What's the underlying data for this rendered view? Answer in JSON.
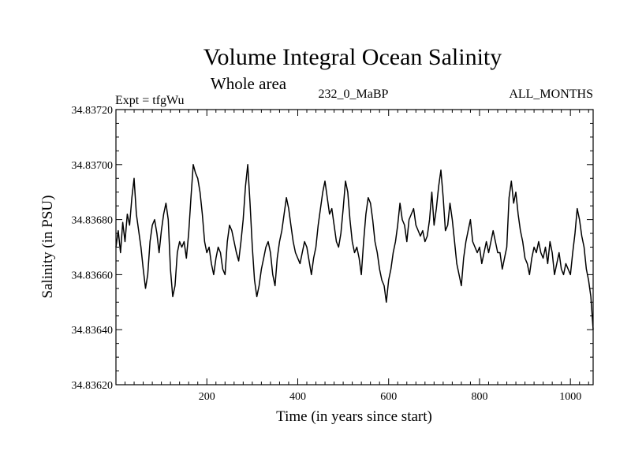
{
  "chart_data": {
    "type": "line",
    "title": "Volume Integral Ocean Salinity",
    "subtitle": "Whole area",
    "header_left": "Expt = tfgWu",
    "header_center": "232_0_MaBP",
    "header_right": "ALL_MONTHS",
    "xlabel": "Time (in years since start)",
    "ylabel": "Salinity (in PSU)",
    "xlim": [
      0,
      1050
    ],
    "ylim": [
      34.8362,
      34.8372
    ],
    "xticks": [
      {
        "value": 200,
        "label": "200"
      },
      {
        "value": 400,
        "label": "400"
      },
      {
        "value": 600,
        "label": "600"
      },
      {
        "value": 800,
        "label": "800"
      },
      {
        "value": 1000,
        "label": "1000"
      }
    ],
    "xminor_step": 20,
    "yticks": [
      {
        "value": 34.8362,
        "label": "34.83620"
      },
      {
        "value": 34.8364,
        "label": "34.83640"
      },
      {
        "value": 34.8366,
        "label": "34.83660"
      },
      {
        "value": 34.8368,
        "label": "34.83680"
      },
      {
        "value": 34.837,
        "label": "34.83700"
      },
      {
        "value": 34.8372,
        "label": "34.83720"
      }
    ],
    "yminor_step": 5e-05,
    "series": [
      {
        "name": "salinity",
        "x": [
          0,
          5,
          10,
          15,
          20,
          25,
          30,
          35,
          40,
          45,
          50,
          55,
          60,
          65,
          70,
          75,
          80,
          85,
          90,
          95,
          100,
          105,
          110,
          115,
          120,
          125,
          130,
          135,
          140,
          145,
          150,
          155,
          160,
          165,
          170,
          175,
          180,
          185,
          190,
          195,
          200,
          205,
          210,
          215,
          220,
          225,
          230,
          235,
          240,
          245,
          250,
          255,
          260,
          265,
          270,
          275,
          280,
          285,
          290,
          295,
          300,
          305,
          310,
          315,
          320,
          325,
          330,
          335,
          340,
          345,
          350,
          355,
          360,
          365,
          370,
          375,
          380,
          385,
          390,
          395,
          400,
          405,
          410,
          415,
          420,
          425,
          430,
          435,
          440,
          445,
          450,
          455,
          460,
          465,
          470,
          475,
          480,
          485,
          490,
          495,
          500,
          505,
          510,
          515,
          520,
          525,
          530,
          535,
          540,
          545,
          550,
          555,
          560,
          565,
          570,
          575,
          580,
          585,
          590,
          595,
          600,
          605,
          610,
          615,
          620,
          625,
          630,
          635,
          640,
          645,
          650,
          655,
          660,
          665,
          670,
          675,
          680,
          685,
          690,
          695,
          700,
          705,
          710,
          715,
          720,
          725,
          730,
          735,
          740,
          745,
          750,
          755,
          760,
          765,
          770,
          775,
          780,
          785,
          790,
          795,
          800,
          805,
          810,
          815,
          820,
          825,
          830,
          835,
          840,
          845,
          850,
          855,
          860,
          865,
          870,
          875,
          880,
          885,
          890,
          895,
          900,
          905,
          910,
          915,
          920,
          925,
          930,
          935,
          940,
          945,
          950,
          955,
          960,
          965,
          970,
          975,
          980,
          985,
          990,
          995,
          1000,
          1005,
          1010,
          1015,
          1020,
          1025,
          1030,
          1035,
          1040,
          1045,
          1050
        ],
        "y": [
          34.8367,
          34.83676,
          34.83668,
          34.83679,
          34.83672,
          34.83682,
          34.83678,
          34.83688,
          34.83695,
          34.83682,
          34.83676,
          34.8367,
          34.83662,
          34.83655,
          34.8366,
          34.83672,
          34.83678,
          34.8368,
          34.83675,
          34.83668,
          34.83676,
          34.83682,
          34.83686,
          34.8368,
          34.83662,
          34.83652,
          34.83656,
          34.83668,
          34.83672,
          34.8367,
          34.83672,
          34.83666,
          34.83675,
          34.83688,
          34.837,
          34.83697,
          34.83695,
          34.8369,
          34.83682,
          34.83672,
          34.83668,
          34.8367,
          34.83664,
          34.8366,
          34.83666,
          34.8367,
          34.83668,
          34.83662,
          34.8366,
          34.83672,
          34.83678,
          34.83676,
          34.83672,
          34.83668,
          34.83665,
          34.83672,
          34.8368,
          34.83692,
          34.837,
          34.83686,
          34.8367,
          34.83658,
          34.83652,
          34.83656,
          34.83662,
          34.83666,
          34.8367,
          34.83672,
          34.83668,
          34.8366,
          34.83656,
          34.83666,
          34.83672,
          34.83676,
          34.83682,
          34.83688,
          34.83684,
          34.83678,
          34.83672,
          34.83668,
          34.83666,
          34.83664,
          34.83668,
          34.83672,
          34.8367,
          34.83665,
          34.8366,
          34.83666,
          34.8367,
          34.83678,
          34.83684,
          34.8369,
          34.83694,
          34.83688,
          34.83682,
          34.83684,
          34.83678,
          34.83672,
          34.8367,
          34.83675,
          34.83684,
          34.83694,
          34.8369,
          34.8368,
          34.83672,
          34.83668,
          34.8367,
          34.83666,
          34.8366,
          34.83672,
          34.83682,
          34.83688,
          34.83686,
          34.8368,
          34.83672,
          34.83668,
          34.83662,
          34.83658,
          34.83656,
          34.8365,
          34.83658,
          34.83662,
          34.83668,
          34.83672,
          34.83678,
          34.83686,
          34.8368,
          34.83678,
          34.83672,
          34.8368,
          34.83682,
          34.83684,
          34.83678,
          34.83676,
          34.83674,
          34.83676,
          34.83672,
          34.83674,
          34.8368,
          34.8369,
          34.83678,
          34.83684,
          34.83692,
          34.83698,
          34.83688,
          34.83676,
          34.83678,
          34.83686,
          34.8368,
          34.83672,
          34.83664,
          34.8366,
          34.83656,
          34.83666,
          34.83672,
          34.83676,
          34.8368,
          34.83672,
          34.8367,
          34.83668,
          34.8367,
          34.83664,
          34.83668,
          34.83672,
          34.83668,
          34.83672,
          34.83676,
          34.83672,
          34.83668,
          34.83668,
          34.83662,
          34.83666,
          34.8367,
          34.83688,
          34.83694,
          34.83686,
          34.8369,
          34.83682,
          34.83676,
          34.83672,
          34.83666,
          34.83664,
          34.8366,
          34.83666,
          34.8367,
          34.83668,
          34.83672,
          34.83668,
          34.83666,
          34.8367,
          34.83664,
          34.83672,
          34.83668,
          34.8366,
          34.83664,
          34.83668,
          34.83662,
          34.8366,
          34.83664,
          34.83662,
          34.8366,
          34.83668,
          34.83675,
          34.83684,
          34.8368,
          34.83674,
          34.8367,
          34.83662,
          34.83658,
          34.83652,
          34.8364
        ]
      }
    ]
  }
}
